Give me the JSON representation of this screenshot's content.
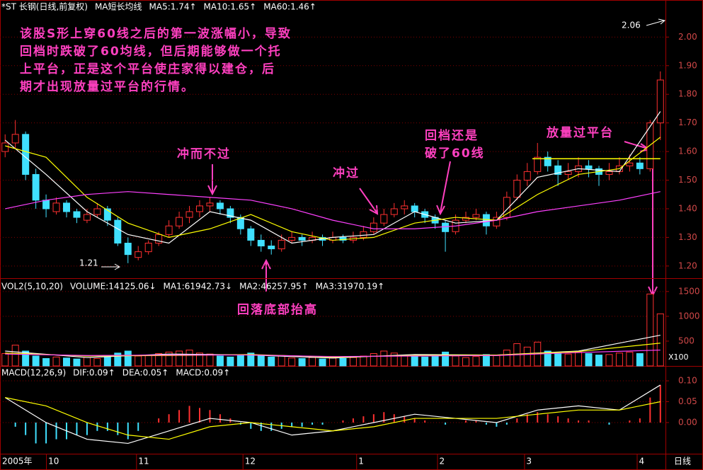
{
  "chart_data": [
    {
      "type": "candlestick",
      "title": "*ST 长钢(日线,前复权)",
      "indicator": "MA短长均线",
      "period": "日线",
      "ylim": [
        1.16,
        2.08
      ],
      "yticks": [
        {
          "value": 1.2,
          "label": "1.20"
        },
        {
          "value": 1.3,
          "label": "1.30"
        },
        {
          "value": 1.4,
          "label": "1.40"
        },
        {
          "value": 1.5,
          "label": "1.50"
        },
        {
          "value": 1.6,
          "label": "1.60"
        },
        {
          "value": 1.7,
          "label": "1.70"
        },
        {
          "value": 1.8,
          "label": "1.80"
        },
        {
          "value": 1.9,
          "label": "1.90"
        },
        {
          "value": 2.0,
          "label": "2.00"
        }
      ],
      "xlim": [
        0,
        65
      ],
      "xticks": [
        {
          "value": 0,
          "label": "2005年"
        },
        {
          "value": 4.5,
          "label": "10"
        },
        {
          "value": 13.3,
          "label": "11"
        },
        {
          "value": 23.7,
          "label": "12"
        },
        {
          "value": 34.8,
          "label": "1"
        },
        {
          "value": 42.7,
          "label": "2"
        },
        {
          "value": 51.2,
          "label": "3"
        },
        {
          "value": 62.2,
          "label": "4"
        }
      ],
      "up_color": "#ff3030",
      "down_color": "#40e0ff",
      "ohlc": [
        [
          1.6,
          1.66,
          1.58,
          1.63
        ],
        [
          1.63,
          1.71,
          1.61,
          1.66
        ],
        [
          1.66,
          1.67,
          1.5,
          1.52
        ],
        [
          1.52,
          1.54,
          1.4,
          1.43
        ],
        [
          1.43,
          1.45,
          1.37,
          1.4
        ],
        [
          1.39,
          1.44,
          1.38,
          1.42
        ],
        [
          1.42,
          1.43,
          1.37,
          1.39
        ],
        [
          1.39,
          1.4,
          1.35,
          1.37
        ],
        [
          1.36,
          1.4,
          1.35,
          1.38
        ],
        [
          1.38,
          1.42,
          1.37,
          1.4
        ],
        [
          1.4,
          1.41,
          1.34,
          1.36
        ],
        [
          1.36,
          1.37,
          1.27,
          1.28
        ],
        [
          1.28,
          1.3,
          1.21,
          1.24
        ],
        [
          1.23,
          1.27,
          1.22,
          1.25
        ],
        [
          1.25,
          1.29,
          1.24,
          1.28
        ],
        [
          1.28,
          1.32,
          1.27,
          1.31
        ],
        [
          1.31,
          1.36,
          1.3,
          1.34
        ],
        [
          1.34,
          1.39,
          1.33,
          1.37
        ],
        [
          1.37,
          1.41,
          1.35,
          1.39
        ],
        [
          1.39,
          1.43,
          1.37,
          1.41
        ],
        [
          1.41,
          1.44,
          1.39,
          1.42
        ],
        [
          1.42,
          1.43,
          1.38,
          1.4
        ],
        [
          1.4,
          1.41,
          1.35,
          1.37
        ],
        [
          1.37,
          1.38,
          1.31,
          1.33
        ],
        [
          1.33,
          1.34,
          1.27,
          1.29
        ],
        [
          1.29,
          1.31,
          1.25,
          1.27
        ],
        [
          1.27,
          1.29,
          1.24,
          1.26
        ],
        [
          1.26,
          1.31,
          1.25,
          1.29
        ],
        [
          1.29,
          1.32,
          1.28,
          1.3
        ],
        [
          1.3,
          1.31,
          1.27,
          1.29
        ],
        [
          1.29,
          1.32,
          1.28,
          1.3
        ],
        [
          1.3,
          1.31,
          1.27,
          1.29
        ],
        [
          1.29,
          1.32,
          1.28,
          1.3
        ],
        [
          1.3,
          1.31,
          1.28,
          1.29
        ],
        [
          1.29,
          1.32,
          1.28,
          1.3
        ],
        [
          1.3,
          1.34,
          1.29,
          1.32
        ],
        [
          1.32,
          1.37,
          1.31,
          1.35
        ],
        [
          1.35,
          1.4,
          1.34,
          1.38
        ],
        [
          1.38,
          1.42,
          1.37,
          1.4
        ],
        [
          1.4,
          1.43,
          1.38,
          1.41
        ],
        [
          1.41,
          1.42,
          1.37,
          1.39
        ],
        [
          1.39,
          1.4,
          1.35,
          1.37
        ],
        [
          1.37,
          1.38,
          1.33,
          1.35
        ],
        [
          1.35,
          1.36,
          1.25,
          1.32
        ],
        [
          1.32,
          1.38,
          1.31,
          1.36
        ],
        [
          1.36,
          1.39,
          1.35,
          1.37
        ],
        [
          1.37,
          1.4,
          1.36,
          1.38
        ],
        [
          1.38,
          1.39,
          1.31,
          1.34
        ],
        [
          1.34,
          1.39,
          1.33,
          1.37
        ],
        [
          1.37,
          1.46,
          1.36,
          1.44
        ],
        [
          1.44,
          1.52,
          1.43,
          1.5
        ],
        [
          1.5,
          1.56,
          1.48,
          1.53
        ],
        [
          1.53,
          1.63,
          1.52,
          1.58
        ],
        [
          1.58,
          1.6,
          1.53,
          1.55
        ],
        [
          1.55,
          1.57,
          1.48,
          1.52
        ],
        [
          1.52,
          1.56,
          1.5,
          1.53
        ],
        [
          1.53,
          1.58,
          1.51,
          1.55
        ],
        [
          1.55,
          1.57,
          1.51,
          1.54
        ],
        [
          1.54,
          1.55,
          1.48,
          1.52
        ],
        [
          1.52,
          1.56,
          1.5,
          1.53
        ],
        [
          1.53,
          1.58,
          1.52,
          1.55
        ],
        [
          1.55,
          1.59,
          1.53,
          1.56
        ],
        [
          1.56,
          1.58,
          1.52,
          1.54
        ],
        [
          1.54,
          1.71,
          1.53,
          1.7
        ],
        [
          1.7,
          1.88,
          1.64,
          1.85
        ]
      ],
      "series": [
        {
          "name": "MA5:1.74↑",
          "color": "#ffffff",
          "x": [
            0,
            4,
            8,
            12,
            16,
            20,
            24,
            28,
            32,
            36,
            40,
            44,
            48,
            52,
            56,
            60,
            64
          ],
          "values": [
            1.64,
            1.52,
            1.39,
            1.31,
            1.28,
            1.39,
            1.36,
            1.28,
            1.3,
            1.31,
            1.39,
            1.35,
            1.36,
            1.51,
            1.54,
            1.53,
            1.74
          ]
        },
        {
          "name": "MA10:1.65↑",
          "color": "#ffff00",
          "x": [
            0,
            4,
            8,
            12,
            16,
            20,
            24,
            28,
            32,
            36,
            40,
            44,
            48,
            52,
            56,
            60,
            64
          ],
          "values": [
            1.62,
            1.58,
            1.44,
            1.35,
            1.3,
            1.33,
            1.38,
            1.32,
            1.29,
            1.3,
            1.35,
            1.37,
            1.36,
            1.45,
            1.52,
            1.54,
            1.65
          ]
        },
        {
          "name": "MA60:1.46↑",
          "color": "#ff40ff",
          "x": [
            0,
            4,
            8,
            12,
            16,
            20,
            24,
            28,
            32,
            36,
            40,
            44,
            48,
            52,
            56,
            60,
            64
          ],
          "values": [
            1.4,
            1.43,
            1.45,
            1.46,
            1.45,
            1.44,
            1.43,
            1.4,
            1.36,
            1.33,
            1.33,
            1.34,
            1.36,
            1.39,
            1.41,
            1.43,
            1.46
          ]
        }
      ],
      "platform": {
        "value": 1.575,
        "x": [
          52,
          64.5
        ],
        "color": "#ffff00"
      },
      "price_labels": [
        {
          "value": 1.21,
          "label": "1.21"
        },
        {
          "value": 2.06,
          "label": "2.06"
        }
      ],
      "note": [
        "该股S形上穿60线之后的第一波涨幅小，导致",
        "回档时跌破了60均线，但后期能够做一个托",
        "上平台，正是这个平台使庄家得以建仓，后",
        "期才出现放量过平台的行情。"
      ],
      "annotations": [
        "冲而不过",
        "冲过",
        "回档还是",
        "破了60线",
        "放量过平台",
        "回落底部抬高"
      ]
    },
    {
      "type": "bar",
      "title": "VOL2(5,10,20)",
      "volume_label": "VOLUME:14125.06↓",
      "unit": "X100",
      "ylim": [
        0,
        1740
      ],
      "yticks": [
        500,
        1000,
        1500
      ],
      "values": [
        250,
        420,
        300,
        200,
        150,
        180,
        160,
        140,
        170,
        150,
        180,
        260,
        300,
        200,
        210,
        250,
        280,
        300,
        320,
        260,
        240,
        200,
        180,
        220,
        260,
        200,
        180,
        210,
        160,
        150,
        170,
        140,
        160,
        150,
        170,
        200,
        250,
        300,
        260,
        220,
        200,
        180,
        220,
        280,
        200,
        170,
        190,
        230,
        210,
        320,
        450,
        380,
        480,
        300,
        260,
        240,
        280,
        250,
        220,
        230,
        260,
        280,
        250,
        1450,
        1050
      ],
      "series": [
        {
          "name": "MA1:61942.73↓",
          "color": "#ffffff",
          "x": [
            0,
            8,
            16,
            24,
            32,
            40,
            48,
            56,
            64
          ],
          "values": [
            300,
            170,
            240,
            220,
            160,
            230,
            220,
            300,
            620
          ]
        },
        {
          "name": "MA2:46257.95↑",
          "color": "#ffff00",
          "x": [
            0,
            8,
            16,
            24,
            32,
            40,
            48,
            56,
            64
          ],
          "values": [
            260,
            200,
            210,
            230,
            180,
            210,
            220,
            290,
            460
          ]
        },
        {
          "name": "MA3:31970.19↑",
          "color": "#ff40ff",
          "x": [
            0,
            8,
            16,
            24,
            32,
            40,
            48,
            56,
            64
          ],
          "values": [
            240,
            210,
            220,
            220,
            190,
            200,
            210,
            270,
            320
          ]
        }
      ]
    },
    {
      "type": "macd",
      "title": "MACD(12,26,9)",
      "ylim": [
        -0.073,
        0.134
      ],
      "yticks": [
        {
          "value": 0.1,
          "label": "0.10"
        },
        0.05,
        {
          "value": 0,
          "label": "0.00"
        }
      ],
      "hist_name": "MACD:0.09↑",
      "hist_color": "#ff40ff",
      "values": [
        0.0,
        -0.01,
        -0.03,
        -0.05,
        -0.05,
        -0.04,
        -0.04,
        -0.03,
        -0.03,
        -0.02,
        -0.02,
        -0.03,
        -0.04,
        -0.02,
        0.0,
        0.01,
        0.02,
        0.03,
        0.04,
        0.035,
        0.03,
        0.02,
        0.01,
        -0.005,
        -0.015,
        -0.02,
        -0.02,
        -0.015,
        -0.01,
        -0.01,
        -0.005,
        -0.005,
        0.0,
        0.005,
        0.01,
        0.015,
        0.02,
        0.025,
        0.02,
        0.015,
        0.01,
        0.005,
        0.0,
        -0.005,
        0.0,
        0.005,
        0.005,
        -0.005,
        -0.01,
        -0.005,
        0.01,
        0.02,
        0.025,
        0.02,
        0.015,
        0.01,
        0.005,
        0.005,
        0.0,
        -0.005,
        0.0,
        0.005,
        0.01,
        0.06,
        0.09
      ],
      "series": [
        {
          "name": "DIF:0.09↑",
          "color": "#ffffff",
          "x": [
            0,
            4,
            8,
            12,
            16,
            20,
            24,
            28,
            32,
            36,
            40,
            44,
            48,
            52,
            56,
            60,
            64
          ],
          "values": [
            0.06,
            0.0,
            -0.04,
            -0.05,
            -0.02,
            0.01,
            0.0,
            -0.03,
            -0.02,
            0.0,
            0.02,
            0.01,
            0.0,
            0.03,
            0.04,
            0.03,
            0.09
          ]
        },
        {
          "name": "DEA:0.05↑",
          "color": "#ffff00",
          "x": [
            0,
            4,
            8,
            12,
            16,
            20,
            24,
            28,
            32,
            36,
            40,
            44,
            48,
            52,
            56,
            60,
            64
          ],
          "values": [
            0.06,
            0.04,
            0.0,
            -0.03,
            -0.04,
            -0.01,
            0.0,
            -0.01,
            -0.02,
            -0.01,
            0.01,
            0.01,
            0.01,
            0.02,
            0.03,
            0.03,
            0.05
          ]
        }
      ]
    }
  ]
}
